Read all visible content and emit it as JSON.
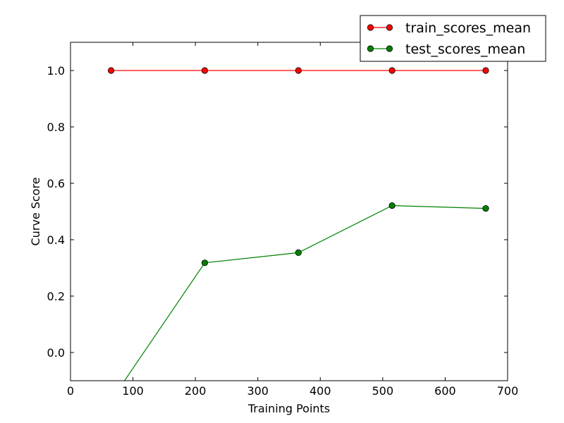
{
  "chart_data": {
    "type": "line",
    "title": "",
    "xlabel": "Training Points",
    "ylabel": "Curve Score",
    "xlim": [
      0,
      700
    ],
    "ylim": [
      -0.1,
      1.1
    ],
    "x_ticks": [
      0,
      100,
      200,
      300,
      400,
      500,
      600,
      700
    ],
    "x_tick_labels": [
      "0",
      "100",
      "200",
      "300",
      "400",
      "500",
      "600",
      "700"
    ],
    "y_ticks": [
      0.0,
      0.2,
      0.4,
      0.6,
      0.8,
      1.0
    ],
    "y_tick_labels": [
      "0.0",
      "0.2",
      "0.4",
      "0.6",
      "0.8",
      "1.0"
    ],
    "grid": false,
    "legend_position": "top-right",
    "x": [
      65,
      215,
      365,
      515,
      665
    ],
    "series": [
      {
        "name": "train_scores_mean",
        "color": "#ff0000",
        "marker": "circle",
        "values": [
          1.0,
          1.0,
          1.0,
          1.0,
          1.0
        ]
      },
      {
        "name": "test_scores_mean",
        "color": "#008000",
        "marker": "circle",
        "values": [
          -0.17,
          0.318,
          0.354,
          0.521,
          0.511
        ]
      }
    ]
  }
}
